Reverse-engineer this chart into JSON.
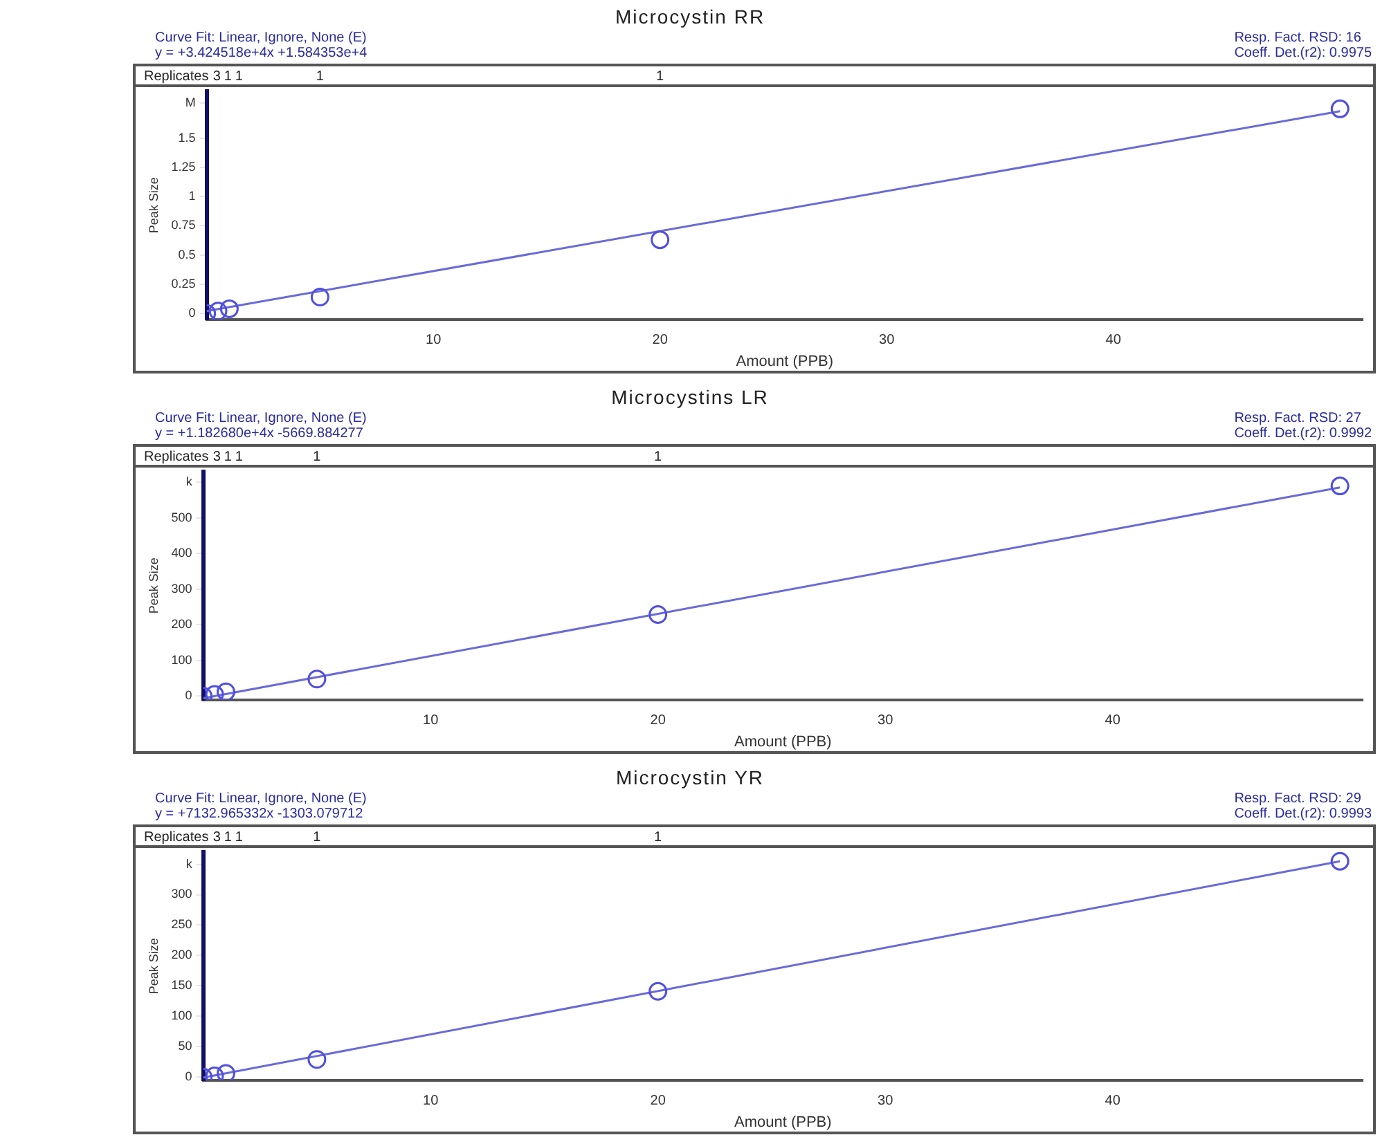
{
  "chart_data": [
    {
      "type": "scatter",
      "title": "Microcystin RR",
      "subtitle": "Curve Fit: Linear, Ignore, None (E)",
      "xlabel": "Amount (PPB)",
      "ylabel": "Peak Size",
      "annotations": [
        "y = +3.424518e+4x +1.584353e+4",
        "Resp. Fact. RSD: 16",
        "Coeff. Det.(r2): 0.9975",
        "Replicates",
        "3",
        "1",
        "1",
        "1",
        "1"
      ],
      "xlim": [
        0,
        51
      ],
      "xticks": [
        10,
        20,
        30,
        40
      ],
      "ylim": [
        -0.05,
        1.9
      ],
      "yticks": [
        0,
        0.25,
        0.5,
        0.75,
        1,
        1.25,
        1.5,
        {
          "value": 1.8,
          "label": "M"
        }
      ],
      "grid": false,
      "legend": false,
      "series": [
        {
          "type": "scatter",
          "color": "#5050e0",
          "marker": "circle",
          "x": [
            0,
            0.5,
            1,
            5,
            20,
            50
          ],
          "values": [
            0,
            0.02,
            0.04,
            0.14,
            0.63,
            1.75
          ]
        },
        {
          "type": "line",
          "color": "#6a6ad8",
          "marker": "none",
          "x": [
            0,
            50
          ],
          "values": [
            0.02,
            1.73
          ]
        }
      ]
    },
    {
      "type": "scatter",
      "title": "Microcystins LR",
      "subtitle": "Curve Fit: Linear, Ignore, None (E)",
      "xlabel": "Amount (PPB)",
      "ylabel": "Peak Size",
      "annotations": [
        "y = +1.182680e+4x -5669.884277",
        "Resp. Fact. RSD: 27",
        "Coeff. Det.(r2): 0.9992",
        "Replicates",
        "3",
        "1",
        "1",
        "1",
        "1"
      ],
      "xlim": [
        0,
        51
      ],
      "xticks": [
        10,
        20,
        30,
        40
      ],
      "ylim": [
        -10,
        630
      ],
      "yticks": [
        0,
        100,
        200,
        300,
        400,
        500,
        {
          "value": 600,
          "label": "k"
        }
      ],
      "grid": false,
      "legend": false,
      "series": [
        {
          "type": "scatter",
          "color": "#5050e0",
          "marker": "circle",
          "x": [
            0,
            0.5,
            1,
            5,
            20,
            50
          ],
          "values": [
            0,
            5,
            12,
            48,
            229,
            590
          ]
        },
        {
          "type": "line",
          "color": "#6a6ad8",
          "marker": "none",
          "x": [
            0,
            50
          ],
          "values": [
            -6,
            586
          ]
        }
      ]
    },
    {
      "type": "scatter",
      "title": "Microcystin YR",
      "subtitle": "Curve Fit: Linear, Ignore, None (E)",
      "xlabel": "Amount (PPB)",
      "ylabel": "Peak Size",
      "annotations": [
        "y = +7132.965332x -1303.079712",
        "Resp. Fact. RSD: 29",
        "Coeff. Det.(r2): 0.9993",
        "Replicates",
        "3",
        "1",
        "1",
        "1",
        "1"
      ],
      "xlim": [
        0,
        51
      ],
      "xticks": [
        10,
        20,
        30,
        40
      ],
      "ylim": [
        -5,
        370
      ],
      "yticks": [
        0,
        50,
        100,
        150,
        200,
        250,
        300,
        {
          "value": 350,
          "label": "k"
        }
      ],
      "grid": false,
      "legend": false,
      "series": [
        {
          "type": "scatter",
          "color": "#5050e0",
          "marker": "circle",
          "x": [
            0,
            0.5,
            1,
            5,
            20,
            50
          ],
          "values": [
            0,
            2,
            6,
            29,
            141,
            355
          ]
        },
        {
          "type": "line",
          "color": "#6a6ad8",
          "marker": "none",
          "x": [
            0,
            50
          ],
          "values": [
            -1,
            355
          ]
        }
      ]
    }
  ]
}
